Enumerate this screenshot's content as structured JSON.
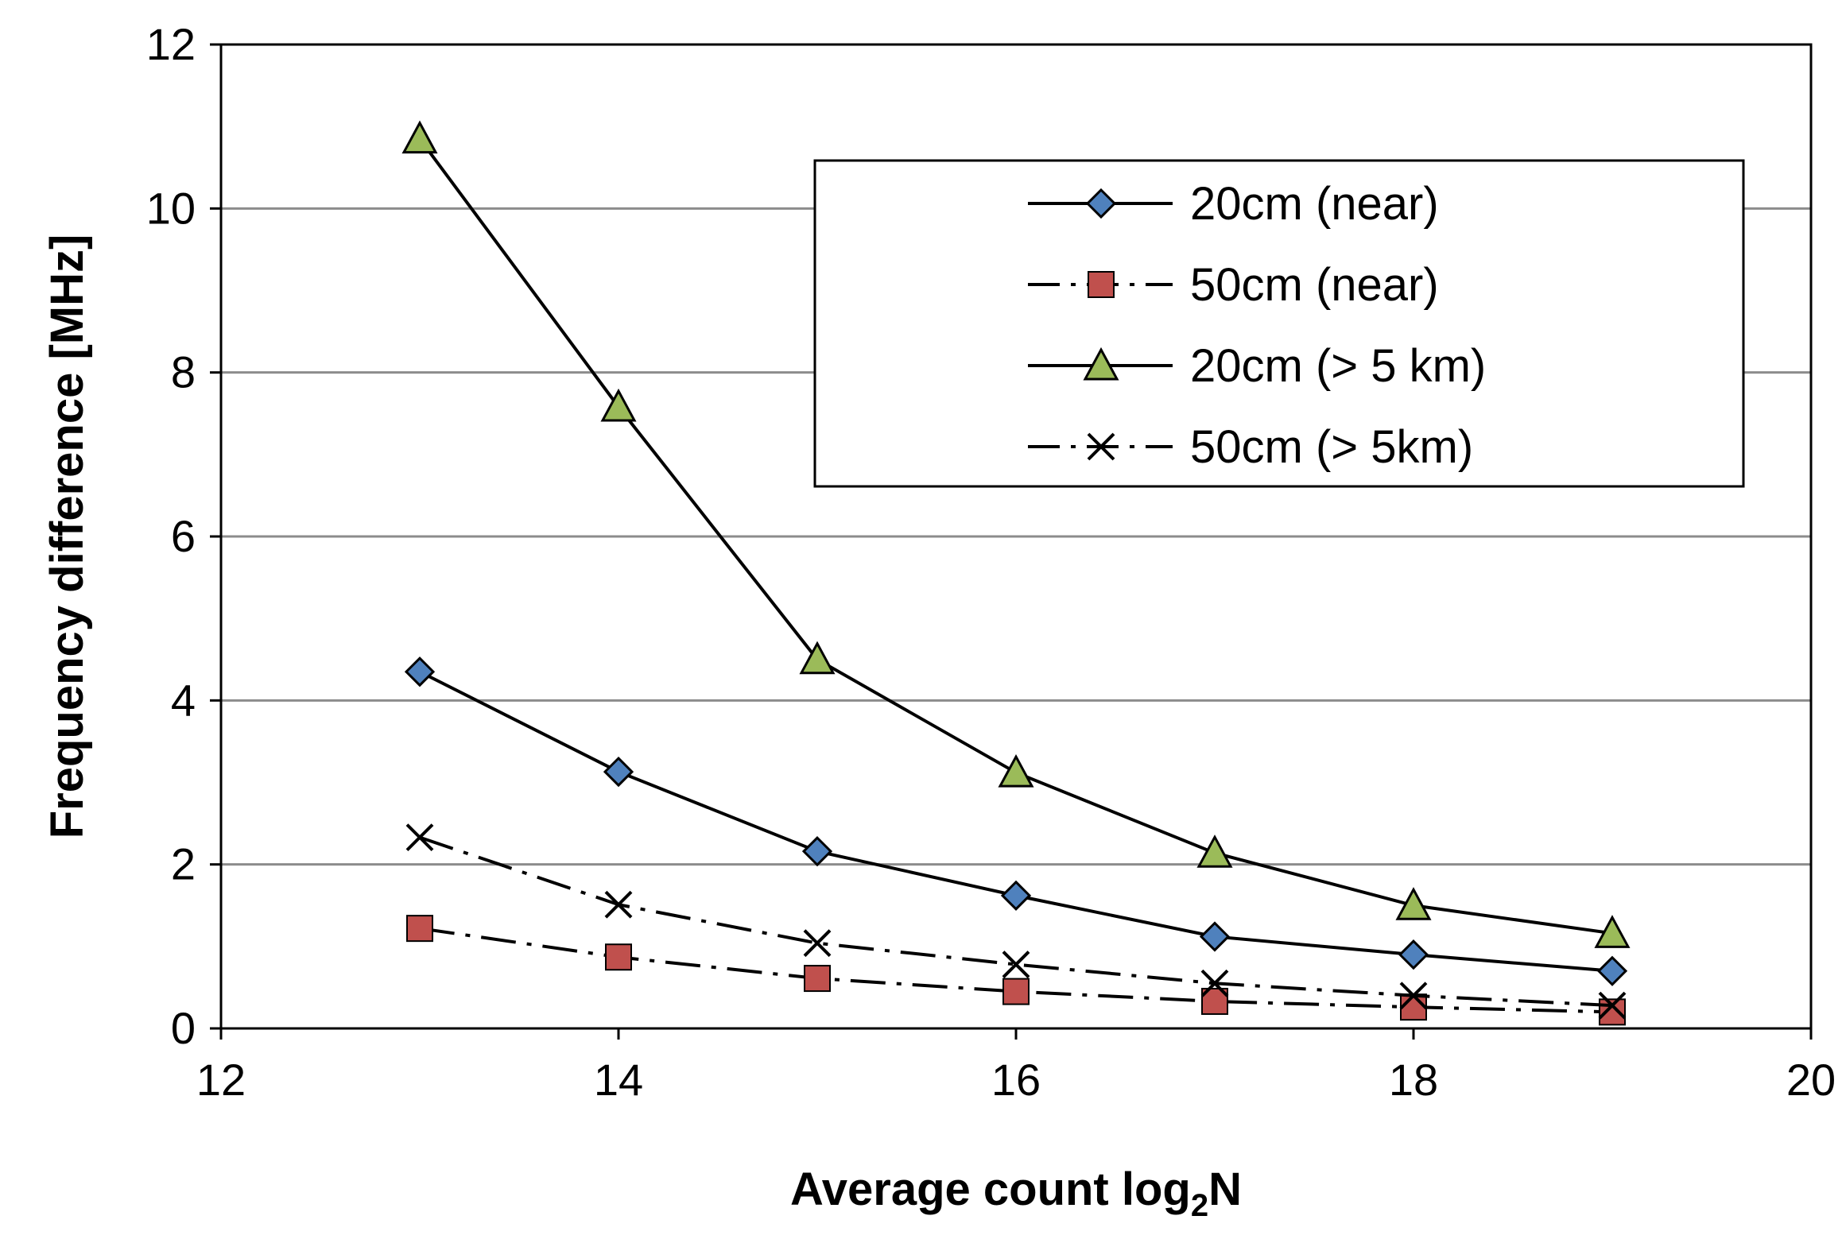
{
  "chart_data": {
    "type": "line",
    "title": "",
    "xlabel_main": "Average count log",
    "xlabel_sub": "2",
    "xlabel_tail": "N",
    "ylabel": "Frequency difference [MHz]",
    "xlim": [
      12,
      20
    ],
    "ylim": [
      0,
      12
    ],
    "xticks": [
      12,
      14,
      16,
      18,
      20
    ],
    "yticks": [
      0,
      2,
      4,
      6,
      8,
      10,
      12
    ],
    "grid": "horizontal",
    "legend_position": "top-right",
    "series": [
      {
        "name": "20cm (near)",
        "marker": "diamond",
        "line": "solid",
        "color": "#4f81bd",
        "x": [
          13,
          14,
          15,
          16,
          17,
          18,
          19
        ],
        "y": [
          4.35,
          3.13,
          2.16,
          1.62,
          1.12,
          0.9,
          0.7
        ]
      },
      {
        "name": "50cm  (near)",
        "marker": "square",
        "line": "dashdot",
        "color": "#c0504d",
        "x": [
          13,
          14,
          15,
          16,
          17,
          18,
          19
        ],
        "y": [
          1.22,
          0.87,
          0.61,
          0.45,
          0.33,
          0.26,
          0.2
        ]
      },
      {
        "name": "20cm  (> 5 km)",
        "marker": "triangle",
        "line": "solid",
        "color": "#9bbb59",
        "x": [
          13,
          14,
          15,
          16,
          17,
          18,
          19
        ],
        "y": [
          10.85,
          7.58,
          4.5,
          3.12,
          2.14,
          1.5,
          1.16
        ]
      },
      {
        "name": "50cm  (> 5km)",
        "marker": "x",
        "line": "dashdot",
        "color": "#000000",
        "x": [
          13,
          14,
          15,
          16,
          17,
          18,
          19
        ],
        "y": [
          2.33,
          1.51,
          1.04,
          0.78,
          0.55,
          0.4,
          0.28
        ]
      }
    ]
  }
}
